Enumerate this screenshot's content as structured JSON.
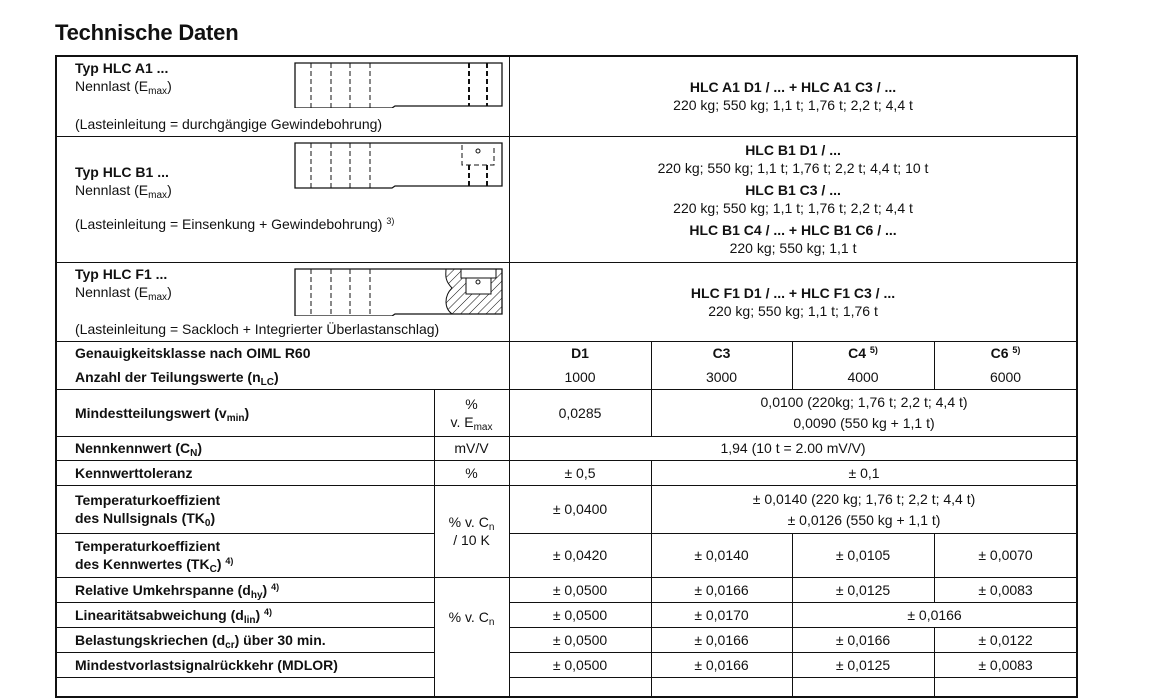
{
  "title": "Technische Daten",
  "types": [
    {
      "title": "Typ HLC A1 ...",
      "nennlast": "Nennlast (E",
      "nennlast_sub": "max",
      "nennlast_close": ")",
      "note": "(Lasteinleitung = durchgängige Gewindebohrung)",
      "note_sup": "",
      "variants": [
        {
          "head": "HLC A1 D1 / ... + HLC A1 C3 / ...",
          "loads": "220 kg;  550 kg;  1,1 t;  1,76 t;  2,2 t;  4,4 t"
        }
      ]
    },
    {
      "title": "Typ HLC B1 ...",
      "nennlast": "Nennlast (E",
      "nennlast_sub": "max",
      "nennlast_close": ")",
      "note": "(Lasteinleitung = Einsenkung + Gewindebohrung)",
      "note_sup": "3)",
      "variants": [
        {
          "head": "HLC B1 D1 / ...",
          "loads": "220 kg;  550 kg;  1,1 t;  1,76 t;  2,2 t;  4,4 t;  10 t"
        },
        {
          "head": "HLC B1 C3 / ...",
          "loads": "220 kg;  550 kg;  1,1 t;  1,76 t;  2,2 t;  4,4 t"
        },
        {
          "head": "HLC B1 C4 / ... + HLC B1 C6 / ...",
          "loads": "220 kg;  550 kg;  1,1 t"
        }
      ]
    },
    {
      "title": "Typ HLC F1 ...",
      "nennlast": "Nennlast (E",
      "nennlast_sub": "max",
      "nennlast_close": ")",
      "note": "(Lasteinleitung = Sackloch + Integrierter Überlastanschlag)",
      "note_sup": "",
      "variants": [
        {
          "head": "HLC F1 D1 / ... + HLC F1 C3 / ...",
          "loads": "220 kg;  550 kg;  1,1 t;  1,76 t"
        }
      ]
    }
  ],
  "classes": {
    "label": "Genauigkeitsklasse nach OIML R60",
    "values": [
      "D1",
      "C3",
      "C4",
      "C6"
    ],
    "sups": [
      "",
      "",
      "5)",
      "5)"
    ]
  },
  "nlc": {
    "label": "Anzahl der Teilungswerte (n",
    "sub": "LC",
    "close": ")",
    "values": [
      "1000",
      "3000",
      "4000",
      "6000"
    ]
  },
  "vmin": {
    "label": "Mindestteilungswert (v",
    "sub": "min",
    "close": ")",
    "unit": "%",
    "unit2": "v. E",
    "unit2_sub": "max",
    "d1": "0,0285",
    "rest1": "0,0100 (220kg;  1,76 t;  2,2 t;  4,4 t)",
    "rest2": "0,0090 (550 kg  +  1,1 t)"
  },
  "cn": {
    "label": "Nennkennwert (C",
    "sub": "N",
    "close": ")",
    "unit": "mV/V",
    "value": "1,94 (10 t = 2.00 mV/V)"
  },
  "tol": {
    "label": "Kennwerttoleranz",
    "unit": "%",
    "d1": "± 0,5",
    "rest": "± 0,1"
  },
  "tk0": {
    "label1": "Temperaturkoeffizient",
    "label2": "des Nullsignals (TK",
    "sub": "0",
    "close": ")",
    "d1": "± 0,0400",
    "rest1": "± 0,0140 (220 kg;  1,76 t;  2,2 t;  4,4 t)",
    "rest2": "± 0,0126 (550 kg  +  1,1 t)"
  },
  "tk_unit": {
    "line1": "% v. C",
    "sub": "n",
    "line2": "/ 10 K"
  },
  "tkc": {
    "label1": "Temperaturkoeffizient",
    "label2": "des Kennwertes (TK",
    "sub": "C",
    "close": ")",
    "sup": "4)",
    "values": [
      "± 0,0420",
      "± 0,0140",
      "± 0,0105",
      "± 0,0070"
    ]
  },
  "pct_unit": {
    "text": "% v. C",
    "sub": "n"
  },
  "dhy": {
    "label": "Relative Umkehrspanne (d",
    "sub": "hy",
    "close": ")",
    "sup": "4)",
    "values": [
      "± 0,0500",
      "± 0,0166",
      "± 0,0125",
      "± 0,0083"
    ]
  },
  "dlin": {
    "label": "Linearitätsabweichung (d",
    "sub": "lin",
    "close": ")",
    "sup": "4)",
    "values": [
      "± 0,0500",
      "± 0,0170",
      "± 0,0166"
    ]
  },
  "dcr": {
    "label": "Belastungskriechen (d",
    "sub": "cr",
    "close": ") über 30 min.",
    "values": [
      "± 0,0500",
      "± 0,0166",
      "± 0,0166",
      "± 0,0122"
    ]
  },
  "mdlor": {
    "label": "Mindestvorlastsignalrückkehr (MDLOR)",
    "values": [
      "± 0,0500",
      "± 0,0166",
      "± 0,0125",
      "± 0,0083"
    ]
  }
}
